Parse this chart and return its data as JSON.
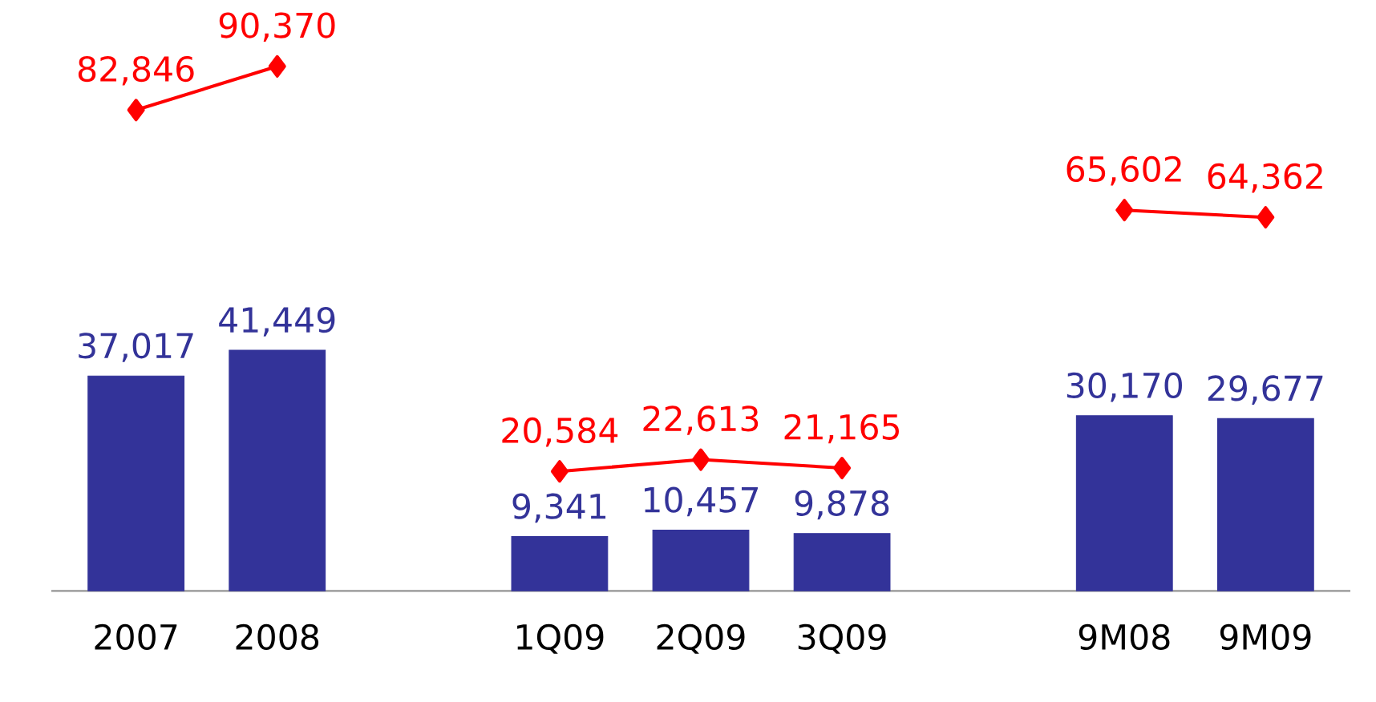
{
  "chart_data": {
    "type": "bar",
    "categories": [
      "2007",
      "2008",
      null,
      "1Q09",
      "2Q09",
      "3Q09",
      null,
      "9M08",
      "9M09"
    ],
    "series": [
      {
        "color": "#333399",
        "values": [
          37017,
          41449,
          null,
          9341,
          10457,
          9878,
          null,
          30170,
          29677
        ],
        "value_labels": [
          "37,017",
          "41,449",
          null,
          "9,341",
          "10,457",
          "9,878",
          null,
          "30,170",
          "29,677"
        ]
      },
      {
        "type": "line",
        "color": "#ff0000",
        "marker": "diamond",
        "values": [
          82846,
          90370,
          null,
          20584,
          22613,
          21165,
          null,
          65602,
          64362
        ],
        "value_labels": [
          "82,846",
          "90,370",
          null,
          "20,584",
          "22,613",
          "21,165",
          null,
          "65,602",
          "64,362"
        ]
      }
    ],
    "tick_labels": "x",
    "grid": false
  }
}
